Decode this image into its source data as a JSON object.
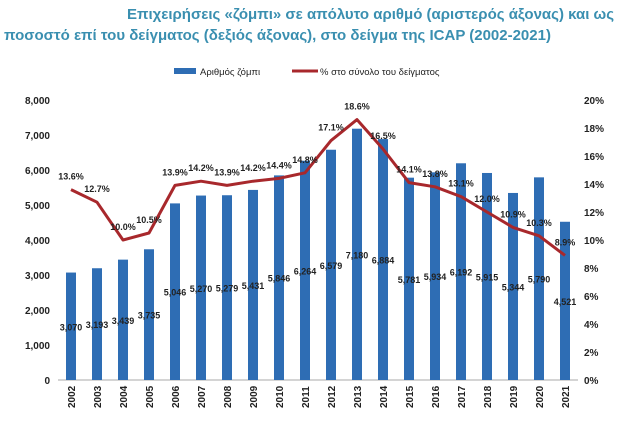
{
  "chart_data": {
    "type": "bar+line",
    "title": "Επιχειρήσεις «ζόμπι» σε απόλυτο αριθμό (αριστερός άξονας) και ως ποσοστό επί του δείγματος (δεξιός άξονας), στο δείγμα της ICAP (2002-2021)",
    "title_line1": "Επιχειρήσεις «ζόμπι» σε απόλυτο αριθμό (αριστερός άξονας) και ως",
    "title_line2": "ποσοστό επί του δείγματος (δεξιός άξονας), στο δείγμα της ICAP (2002-2021)",
    "categories": [
      "2002",
      "2003",
      "2004",
      "2005",
      "2006",
      "2007",
      "2008",
      "2009",
      "2010",
      "2011",
      "2012",
      "2013",
      "2014",
      "2015",
      "2016",
      "2017",
      "2018",
      "2019",
      "2020",
      "2021"
    ],
    "series": [
      {
        "name": "Αριθμός ζόμπι",
        "type": "bar",
        "axis": "left",
        "color": "#2e6db4",
        "values": [
          3070,
          3193,
          3439,
          3735,
          5046,
          5270,
          5279,
          5431,
          5846,
          6264,
          6579,
          7180,
          6884,
          5781,
          5934,
          6192,
          5915,
          5344,
          5790,
          4521
        ],
        "labels": [
          "3,070",
          "3,193",
          "3,439",
          "3,735",
          "5,046",
          "5,270",
          "5,279",
          "5,431",
          "5,846",
          "6,264",
          "6,579",
          "7,180",
          "6,884",
          "5,781",
          "5,934",
          "6,192",
          "5,915",
          "5,344",
          "5,790",
          "4,521"
        ]
      },
      {
        "name": "% στο σύνολο του δείγματος",
        "type": "line",
        "axis": "right",
        "color": "#a8282c",
        "values": [
          13.6,
          12.7,
          10.0,
          10.5,
          13.9,
          14.2,
          13.9,
          14.2,
          14.4,
          14.8,
          17.1,
          18.6,
          16.5,
          14.1,
          13.8,
          13.1,
          12.0,
          10.9,
          10.3,
          8.9
        ],
        "labels": [
          "13.6%",
          "12.7%",
          "10.0%",
          "10.5%",
          "13.9%",
          "14.2%",
          "13.9%",
          "14.2%",
          "14.4%",
          "14.8%",
          "17.1%",
          "18.6%",
          "16.5%",
          "14.1%",
          "13.8%",
          "13.1%",
          "12.0%",
          "10.9%",
          "10.3%",
          "8.9%"
        ]
      }
    ],
    "y_left": {
      "lim": [
        0,
        8000
      ],
      "ticks": [
        "0",
        "1,000",
        "2,000",
        "3,000",
        "4,000",
        "5,000",
        "6,000",
        "7,000",
        "8,000"
      ]
    },
    "y_right": {
      "lim": [
        0,
        20
      ],
      "ticks": [
        "0%",
        "2%",
        "4%",
        "6%",
        "8%",
        "10%",
        "12%",
        "14%",
        "16%",
        "18%",
        "20%"
      ]
    },
    "legend": "top",
    "grid": false
  }
}
